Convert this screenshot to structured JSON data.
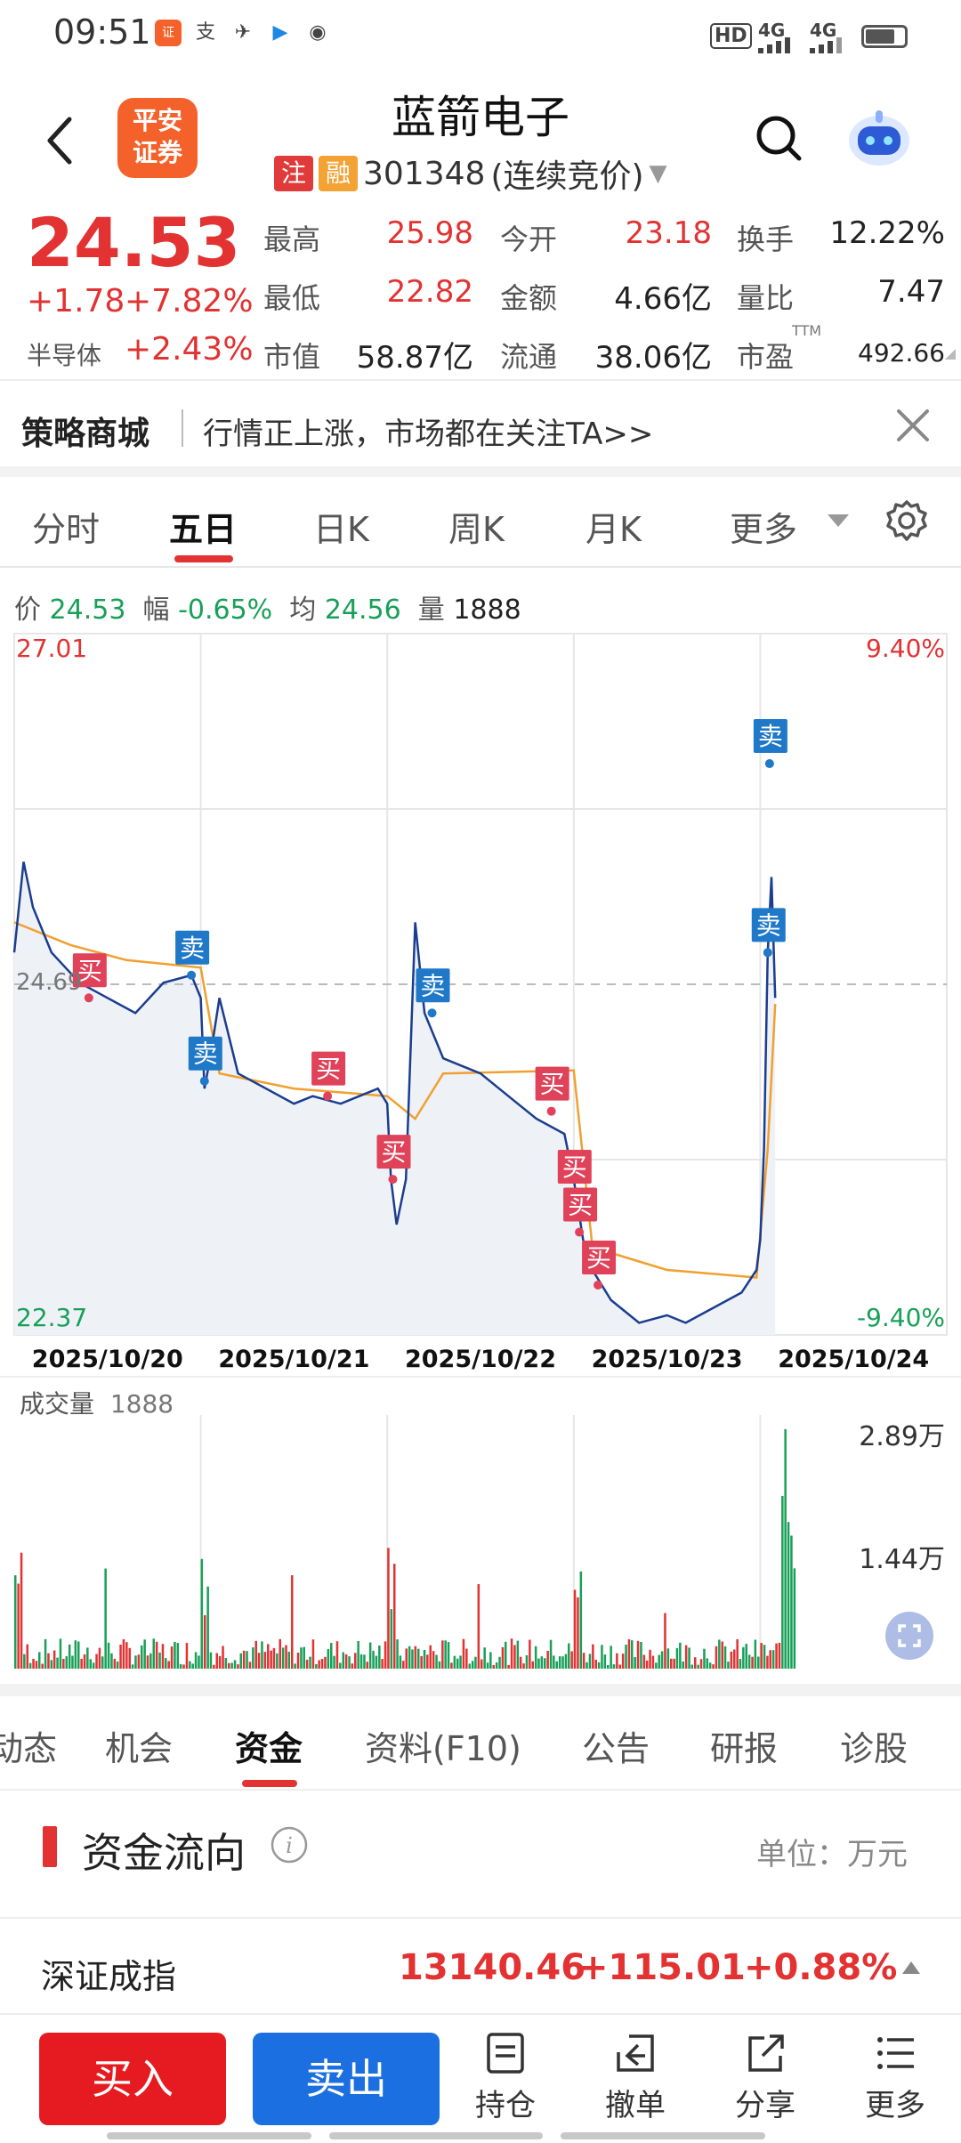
{
  "status": {
    "time": "09:51",
    "net1": "4G",
    "net2": "4G",
    "hd": "HD"
  },
  "header": {
    "logo_line1": "平安",
    "logo_line2": "证券",
    "name": "蓝箭电子",
    "tag1": "注",
    "tag2": "融",
    "code": "301348",
    "trade_mode": "(连续竞价)"
  },
  "quote": {
    "price": "24.53",
    "change": "+1.78",
    "change_pct": "+7.82%",
    "sector_label": "半导体",
    "sector_pct": "+2.43%",
    "high_label": "最高",
    "high": "25.98",
    "open_label": "今开",
    "open": "23.18",
    "turnover_label": "换手",
    "turnover": "12.22%",
    "low_label": "最低",
    "low": "22.82",
    "amount_label": "金额",
    "amount": "4.66亿",
    "vol_ratio_label": "量比",
    "vol_ratio": "7.47",
    "mcap_label": "市值",
    "mcap": "58.87亿",
    "float_label": "流通",
    "float": "38.06亿",
    "pe_label": "市盈",
    "pe_sup": "TTM",
    "pe": "492.66"
  },
  "banner": {
    "title": "策略商城",
    "text": "行情正上涨，市场都在关注TA>>"
  },
  "tabs": [
    "分时",
    "五日",
    "日K",
    "周K",
    "月K",
    "更多"
  ],
  "info_line": {
    "price_label": "价",
    "price": "24.53",
    "range_label": "幅",
    "range": "-0.65%",
    "avg_label": "均",
    "avg": "24.56",
    "vol_label": "量",
    "vol": "1888"
  },
  "chart_data": {
    "type": "line",
    "title": "",
    "days": [
      "2025/10/20",
      "2025/10/21",
      "2025/10/22",
      "2025/10/23",
      "2025/10/24"
    ],
    "ylim": [
      22.37,
      27.01
    ],
    "ref_price": "24.69",
    "y_max_label": "27.01",
    "y_min_label": "22.37",
    "pct_max_label": "9.40%",
    "pct_min_label": "-9.40%",
    "price_series": [
      [
        0.0,
        24.9
      ],
      [
        0.05,
        25.5
      ],
      [
        0.1,
        25.2
      ],
      [
        0.2,
        24.9
      ],
      [
        0.35,
        24.7
      ],
      [
        0.5,
        24.6
      ],
      [
        0.65,
        24.5
      ],
      [
        0.8,
        24.7
      ],
      [
        0.95,
        24.75
      ],
      [
        1.0,
        24.6
      ],
      [
        1.02,
        24.0
      ],
      [
        1.05,
        24.2
      ],
      [
        1.1,
        24.6
      ],
      [
        1.2,
        24.1
      ],
      [
        1.35,
        24.0
      ],
      [
        1.5,
        23.9
      ],
      [
        1.6,
        23.95
      ],
      [
        1.75,
        23.9
      ],
      [
        1.95,
        24.0
      ],
      [
        2.0,
        23.9
      ],
      [
        2.02,
        23.4
      ],
      [
        2.05,
        23.1
      ],
      [
        2.1,
        23.4
      ],
      [
        2.15,
        25.1
      ],
      [
        2.2,
        24.5
      ],
      [
        2.3,
        24.2
      ],
      [
        2.5,
        24.1
      ],
      [
        2.7,
        23.9
      ],
      [
        2.8,
        23.8
      ],
      [
        2.95,
        23.7
      ],
      [
        3.0,
        23.4
      ],
      [
        3.05,
        23.0
      ],
      [
        3.1,
        22.8
      ],
      [
        3.2,
        22.6
      ],
      [
        3.35,
        22.45
      ],
      [
        3.5,
        22.5
      ],
      [
        3.6,
        22.45
      ],
      [
        3.75,
        22.55
      ],
      [
        3.9,
        22.65
      ],
      [
        3.98,
        22.8
      ],
      [
        4.0,
        23.0
      ],
      [
        4.02,
        23.6
      ],
      [
        4.04,
        24.9
      ],
      [
        4.06,
        25.4
      ],
      [
        4.08,
        24.6
      ]
    ],
    "avg_series": [
      [
        0.0,
        25.1
      ],
      [
        0.3,
        24.95
      ],
      [
        0.6,
        24.85
      ],
      [
        1.0,
        24.8
      ],
      [
        1.1,
        24.1
      ],
      [
        1.5,
        24.0
      ],
      [
        2.0,
        23.95
      ],
      [
        2.15,
        23.8
      ],
      [
        2.3,
        24.1
      ],
      [
        3.0,
        24.12
      ],
      [
        3.1,
        22.95
      ],
      [
        3.5,
        22.8
      ],
      [
        3.98,
        22.75
      ],
      [
        4.04,
        23.6
      ],
      [
        4.08,
        24.56
      ]
    ],
    "signals": [
      {
        "label": "买",
        "t": 0.4,
        "p": 24.6
      },
      {
        "label": "卖",
        "t": 0.95,
        "p": 24.75
      },
      {
        "label": "卖",
        "t": 1.02,
        "p": 24.05
      },
      {
        "label": "买",
        "t": 1.68,
        "p": 23.95
      },
      {
        "label": "买",
        "t": 2.03,
        "p": 23.4
      },
      {
        "label": "卖",
        "t": 2.24,
        "p": 24.5
      },
      {
        "label": "买",
        "t": 2.88,
        "p": 23.85
      },
      {
        "label": "买",
        "t": 3.0,
        "p": 23.3
      },
      {
        "label": "买",
        "t": 3.03,
        "p": 23.05
      },
      {
        "label": "买",
        "t": 3.13,
        "p": 22.7
      },
      {
        "label": "卖",
        "t": 4.05,
        "p": 26.15
      },
      {
        "label": "卖",
        "t": 4.04,
        "p": 24.9
      }
    ]
  },
  "volume": {
    "label": "成交量",
    "value": "1888",
    "max_label": "2.89万",
    "mid_label": "1.44万"
  },
  "sub_tabs": [
    "动态",
    "机会",
    "资金",
    "资料(F10)",
    "公告",
    "研报",
    "诊股"
  ],
  "fund": {
    "title": "资金流向",
    "unit": "单位：万元"
  },
  "index": {
    "name": "深证成指",
    "value": "13140.46",
    "change": "+115.01",
    "pct": "+0.88%"
  },
  "toolbar": {
    "buy": "买入",
    "sell": "卖出",
    "hold": "持仓",
    "cancel": "撤单",
    "share": "分享",
    "more": "更多"
  },
  "colors": {
    "up": "#e23232",
    "down": "#18a058",
    "line": "#1a3d8f",
    "avg": "#f0a030",
    "buy_tag": "#e0425a",
    "sell_tag": "#1f78c8"
  }
}
